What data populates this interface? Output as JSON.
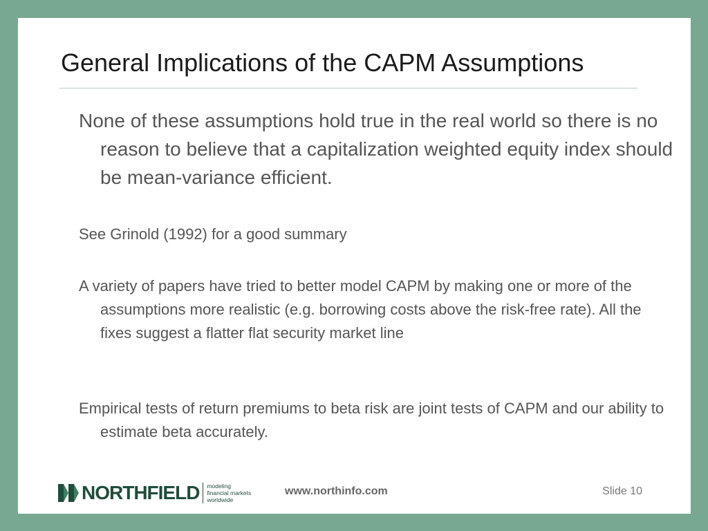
{
  "slide": {
    "title": "General Implications of the CAPM Assumptions",
    "bullets": [
      "None of these assumptions hold true in the real world so there is no reason to believe that a capitalization weighted equity index should be mean-variance efficient.",
      "See Grinold (1992) for a good summary",
      "A variety of papers have tried to better model CAPM by making one or more of the assumptions more realistic (e.g. borrowing costs above the risk-free rate).  All the fixes suggest a flatter flat security market line",
      "Empirical tests of return premiums to beta risk are joint tests of CAPM and our ability to estimate beta accurately."
    ]
  },
  "footer": {
    "logo_name": "NORTHFIELD",
    "logo_tagline": [
      "modeling",
      "financial markets",
      "worldwide"
    ],
    "url": "www.northinfo.com",
    "slide_number": "Slide 10"
  },
  "colors": {
    "frame": "#78a892",
    "brand": "#1f4d3a",
    "text": "#555555"
  }
}
